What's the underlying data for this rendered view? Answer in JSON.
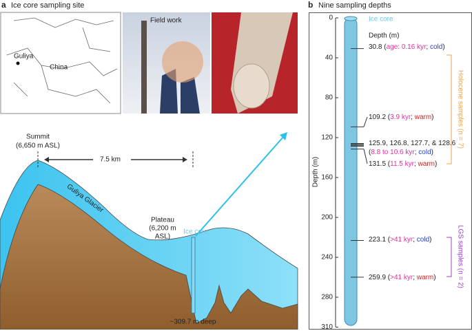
{
  "panel_a": {
    "label": "a",
    "title": "Ice core sampling site",
    "map": {
      "place": "Guliya",
      "country": "China"
    },
    "photo_title": "Field work",
    "cross_section": {
      "summit": "Summit",
      "summit_elevation": "(6,650 m ASL)",
      "distance": "7.5 km",
      "glacier": "Guliya Glacier",
      "plateau": "Plateau",
      "plateau_elevation_1": "(6,200 m",
      "plateau_elevation_2": "ASL)",
      "ice_core": "Ice core",
      "core_depth": "~309.7 m deep"
    }
  },
  "panel_b": {
    "label": "b",
    "title": "Nine sampling depths",
    "axis_label": "Depth (m)",
    "ylim": [
      0,
      310
    ],
    "yticks": [
      0,
      40,
      80,
      120,
      160,
      200,
      240,
      280,
      310
    ],
    "core_label": "Ice core",
    "depth_header": "Depth (m)",
    "samples": [
      {
        "depth_label": "30.8",
        "depths": [
          30.8
        ],
        "segments": [
          {
            "text": " (",
            "color": "#222222"
          },
          {
            "text": "age: 0.16 kyr",
            "color": "#e4309a"
          },
          {
            "text": "; ",
            "color": "#222222"
          },
          {
            "text": "cold",
            "color": "#2a3fd6"
          },
          {
            "text": ")",
            "color": "#222222"
          }
        ]
      },
      {
        "depth_label": "109.2",
        "depths": [
          109.2
        ],
        "segments": [
          {
            "text": " (",
            "color": "#222222"
          },
          {
            "text": "3.9 kyr",
            "color": "#e4309a"
          },
          {
            "text": "; ",
            "color": "#222222"
          },
          {
            "text": "warm",
            "color": "#d42020"
          },
          {
            "text": ")",
            "color": "#222222"
          }
        ]
      },
      {
        "depth_label": "125.9, 126.8, 127.7, & 128.6",
        "depths": [
          125.9,
          126.8,
          127.7,
          128.6
        ],
        "segments": [
          {
            "text": "(",
            "color": "#222222"
          },
          {
            "text": "8.8 to 10.6 kyr",
            "color": "#e4309a"
          },
          {
            "text": "; ",
            "color": "#222222"
          },
          {
            "text": "cold",
            "color": "#2a3fd6"
          },
          {
            "text": ")",
            "color": "#222222"
          }
        ]
      },
      {
        "depth_label": "131.5",
        "depths": [
          131.5
        ],
        "segments": [
          {
            "text": " (",
            "color": "#222222"
          },
          {
            "text": "11.5 kyr",
            "color": "#e4309a"
          },
          {
            "text": "; ",
            "color": "#222222"
          },
          {
            "text": "warm",
            "color": "#d42020"
          },
          {
            "text": ")",
            "color": "#222222"
          }
        ]
      },
      {
        "depth_label": "223.1",
        "depths": [
          223.1
        ],
        "segments": [
          {
            "text": " (",
            "color": "#222222"
          },
          {
            "text": ">41 kyr",
            "color": "#e4309a"
          },
          {
            "text": "; ",
            "color": "#222222"
          },
          {
            "text": "cold",
            "color": "#2a3fd6"
          },
          {
            "text": ")",
            "color": "#222222"
          }
        ]
      },
      {
        "depth_label": "259.9",
        "depths": [
          259.9
        ],
        "segments": [
          {
            "text": " (",
            "color": "#222222"
          },
          {
            "text": ">41 kyr",
            "color": "#e4309a"
          },
          {
            "text": "; ",
            "color": "#222222"
          },
          {
            "text": "warm",
            "color": "#d42020"
          },
          {
            "text": ")",
            "color": "#222222"
          }
        ]
      }
    ],
    "groups": [
      {
        "label": "Holocene samples (n = 7)",
        "color": "#f0a050"
      },
      {
        "label": "LGS samples (n = 2)",
        "color": "#a040d0"
      }
    ]
  }
}
